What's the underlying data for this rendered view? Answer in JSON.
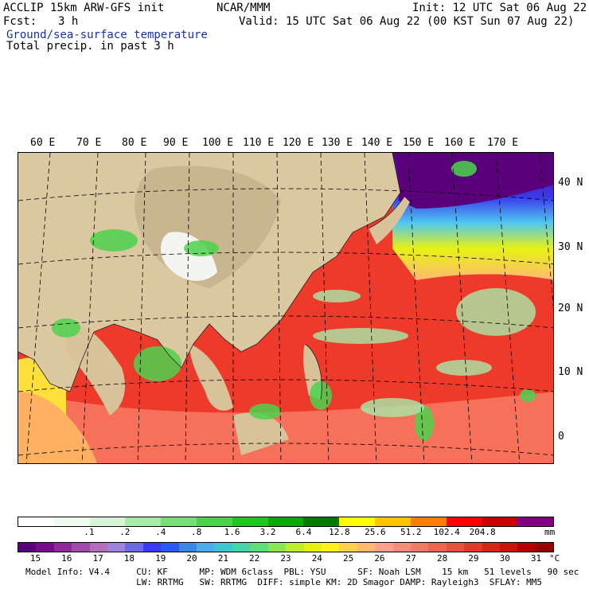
{
  "header": {
    "model": "ACCLIP 15km ARW-GFS init",
    "org": "NCAR/MMM",
    "init": "Init: 12 UTC Sat 06 Aug 22",
    "fcst_label": "Fcst:",
    "fcst_value": "3 h",
    "valid": "Valid: 15 UTC Sat 06 Aug 22 (00 KST Sun 07 Aug 22)",
    "field1": "Ground/sea-surface temperature",
    "field2": "Total precip. in past 3 h"
  },
  "map": {
    "lon_labels": [
      "60 E",
      "70 E",
      "80 E",
      "90 E",
      "100 E",
      "110 E",
      "120 E",
      "130 E",
      "140 E",
      "150 E",
      "160 E",
      "170 E"
    ],
    "lat_labels": [
      "40 N",
      "30 N",
      "20 N",
      "10 N",
      "0"
    ]
  },
  "precip_scale": {
    "unit": "mm",
    "ticks": [
      ".1",
      ".2",
      ".4",
      ".8",
      "1.6",
      "3.2",
      "6.4",
      "12.8",
      "25.6",
      "51.2",
      "102.4",
      "204.8"
    ],
    "colors": [
      "#ffffff",
      "#f0fbf0",
      "#d6f5d6",
      "#a8eaa8",
      "#78de78",
      "#4cd24c",
      "#22c622",
      "#0aa80a",
      "#007a00",
      "#ffff00",
      "#ffc400",
      "#ff8000",
      "#ff0000",
      "#c80000",
      "#800080"
    ]
  },
  "temp_scale": {
    "unit": "°C",
    "ticks": [
      "15",
      "16",
      "17",
      "18",
      "19",
      "20",
      "21",
      "22",
      "23",
      "24",
      "25",
      "26",
      "27",
      "28",
      "29",
      "30",
      "31"
    ],
    "colors": [
      "#5a007a",
      "#780a8c",
      "#8c2a9a",
      "#a04aaa",
      "#b46cbc",
      "#9c84d8",
      "#6a6ae6",
      "#3a3aee",
      "#2a5af2",
      "#3c86f2",
      "#50aaf0",
      "#3cc8d2",
      "#3cd8a8",
      "#5ae07a",
      "#8ce650",
      "#bcee2c",
      "#e6f214",
      "#fff01e",
      "#ffd24a",
      "#ffba72",
      "#ffa08c",
      "#ff8c78",
      "#fa7864",
      "#f06450",
      "#e6503c",
      "#dc3c28",
      "#d22814",
      "#c8140a",
      "#b40000",
      "#960000"
    ]
  },
  "footer": {
    "line1": "Model Info: V4.4     CU: KF      MP: WDM 6class  PBL: YSU      SF: Noah LSM    15 km   51 levels   90 sec",
    "line2": "                     LW: RRTMG   SW: RRTMG  DIFF: simple KM: 2D Smagor DAMP: Rayleigh3  SFLAY: MM5"
  }
}
